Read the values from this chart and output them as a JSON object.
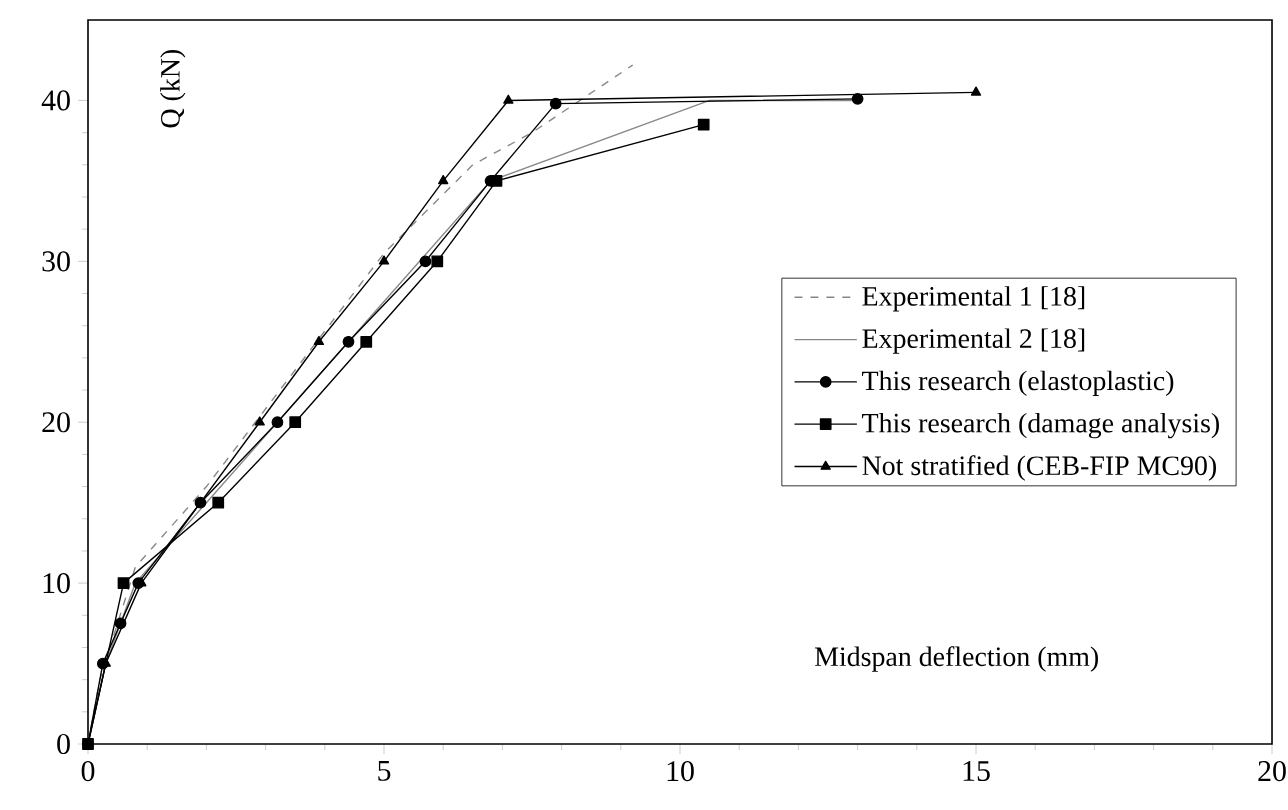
{
  "chart_data": {
    "type": "line",
    "xlabel": "Midspan deflection (mm)",
    "ylabel": "Q (kN)",
    "xlim": [
      0,
      20
    ],
    "ylim": [
      0,
      45
    ],
    "xticks": [
      0,
      5,
      10,
      15,
      20
    ],
    "yticks": [
      0,
      10,
      20,
      30,
      40
    ],
    "legend": "right",
    "grid": false,
    "series": [
      {
        "name": "Experimental 1 [18]",
        "color": "#888888",
        "line_style": "dashed",
        "marker": "none",
        "x": [
          0,
          0.2,
          0.8,
          2,
          5,
          6.5,
          7.5,
          9.2
        ],
        "values": [
          0,
          4,
          11,
          16,
          30.5,
          36,
          38,
          42.2
        ]
      },
      {
        "name": "Experimental 2 [18]",
        "color": "#888888",
        "line_style": "solid",
        "marker": "none",
        "x": [
          0,
          0.3,
          0.8,
          2,
          4.4,
          6.8,
          10.5,
          13
        ],
        "values": [
          0,
          5,
          10,
          15,
          25,
          35,
          40,
          40
        ]
      },
      {
        "name": "This research (elastoplastic)",
        "color": "#000000",
        "line_style": "solid",
        "marker": "circle",
        "x": [
          0,
          0.25,
          0.55,
          0.85,
          1.9,
          3.2,
          4.4,
          5.7,
          6.8,
          7.9,
          13
        ],
        "values": [
          0,
          5,
          7.5,
          10,
          15,
          20,
          25,
          30,
          35,
          39.8,
          40.1
        ]
      },
      {
        "name": "This research (damage analysis)",
        "color": "#000000",
        "line_style": "solid",
        "marker": "square",
        "x": [
          0,
          0.6,
          2.2,
          3.5,
          4.7,
          5.9,
          6.9,
          10.4
        ],
        "values": [
          0,
          10,
          15,
          20,
          25,
          30,
          35,
          38.5
        ]
      },
      {
        "name": "Not stratified (CEB-FIP MC90)",
        "color": "#000000",
        "line_style": "solid",
        "marker": "triangle",
        "x": [
          0,
          0.3,
          0.9,
          2.9,
          3.9,
          5.0,
          6.0,
          7.1,
          15
        ],
        "values": [
          0,
          5,
          10,
          20,
          25,
          30,
          35,
          40,
          40.5
        ]
      }
    ]
  }
}
